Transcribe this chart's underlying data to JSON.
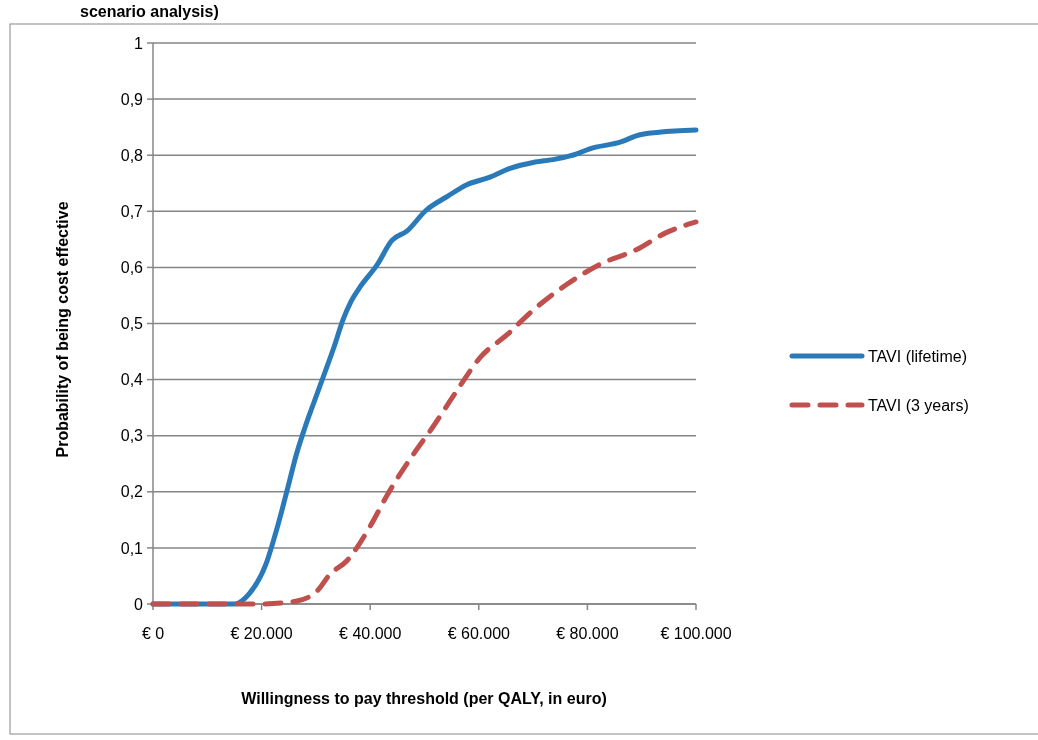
{
  "chart_data": {
    "type": "line",
    "title": "scenario analysis)",
    "xlabel": "Willingness to pay threshold (per QALY, in euro)",
    "ylabel": "Probability of being cost effective",
    "xlim": [
      0,
      100000
    ],
    "xticks": [
      {
        "value": 0,
        "label": "€ 0"
      },
      {
        "value": 20000,
        "label": "€ 20.000"
      },
      {
        "value": 40000,
        "label": "€ 40.000"
      },
      {
        "value": 60000,
        "label": "€ 60.000"
      },
      {
        "value": 80000,
        "label": "€ 80.000"
      },
      {
        "value": 100000,
        "label": "€ 100.000"
      }
    ],
    "ylim": [
      0,
      1
    ],
    "yticks": [
      0,
      {
        "value": 0.1,
        "label": "0,1"
      },
      {
        "value": 0.2,
        "label": "0,2"
      },
      {
        "value": 0.3,
        "label": "0,3"
      },
      {
        "value": 0.4,
        "label": "0,4"
      },
      {
        "value": 0.5,
        "label": "0,5"
      },
      {
        "value": 0.6,
        "label": "0,6"
      },
      {
        "value": 0.7,
        "label": "0,7"
      },
      {
        "value": 0.8,
        "label": "0,8"
      },
      {
        "value": 0.9,
        "label": "0,9"
      },
      1
    ],
    "grid": "y",
    "legend": "right",
    "series": [
      {
        "name": "TAVI (lifetime)",
        "color": "#2a7ab9",
        "line_style": "solid",
        "x": [
          0,
          15000,
          17700,
          20800,
          22900,
          24900,
          26300,
          28000,
          29700,
          31700,
          33400,
          35000,
          36500,
          38200,
          41300,
          44000,
          46800,
          50200,
          54300,
          57700,
          61800,
          65900,
          70000,
          74100,
          78200,
          80300,
          86300,
          89100,
          93200,
          100000
        ],
        "values": [
          0,
          0,
          0.018,
          0.071,
          0.137,
          0.21,
          0.263,
          0.315,
          0.361,
          0.414,
          0.46,
          0.507,
          0.54,
          0.566,
          0.605,
          0.648,
          0.665,
          0.701,
          0.727,
          0.747,
          0.76,
          0.777,
          0.787,
          0.793,
          0.803,
          0.811,
          0.824,
          0.835,
          0.841,
          0.845
        ]
      },
      {
        "name": "TAVI (3 years)",
        "color": "#c0504d",
        "line_style": "dashed",
        "x": [
          0,
          19500,
          26300,
          30400,
          32400,
          35800,
          39900,
          43300,
          48100,
          51500,
          55600,
          60400,
          65200,
          69900,
          76100,
          82200,
          89100,
          94500,
          100000
        ],
        "values": [
          0,
          0,
          0.005,
          0.025,
          0.051,
          0.078,
          0.137,
          0.197,
          0.269,
          0.315,
          0.375,
          0.441,
          0.48,
          0.523,
          0.569,
          0.605,
          0.632,
          0.662,
          0.681
        ]
      }
    ]
  }
}
